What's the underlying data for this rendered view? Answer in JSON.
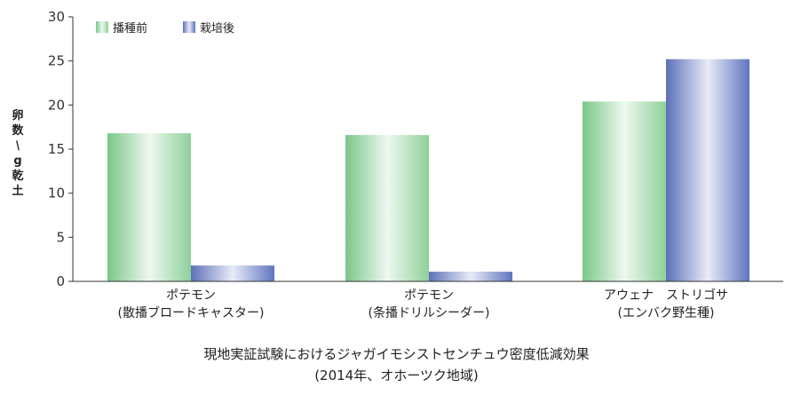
{
  "chart_data": {
    "type": "bar",
    "title": "現地実証試験におけるジャガイモシストセンチュウ密度低減効果",
    "subtitle": "(2014年、オホーツク地域)",
    "ylabel": "卵数/g乾土",
    "xlabel": "",
    "ylim": [
      0,
      30
    ],
    "yticks": [
      0,
      5,
      10,
      15,
      20,
      25,
      30
    ],
    "categories": [
      [
        "ポテモン",
        "(散播ブロードキャスター)"
      ],
      [
        "ポテモン",
        "(条播ドリルシーダー)"
      ],
      [
        "アウェナ　ストリゴサ",
        "(エンバク野生種)"
      ]
    ],
    "series": [
      {
        "name": "播種前",
        "values": [
          16.8,
          16.6,
          20.4
        ],
        "color": "#8fd09a"
      },
      {
        "name": "栽培後",
        "values": [
          1.8,
          1.1,
          25.2
        ],
        "color": "#6f82c4"
      }
    ],
    "legend_position": "top-left",
    "grid": false
  }
}
